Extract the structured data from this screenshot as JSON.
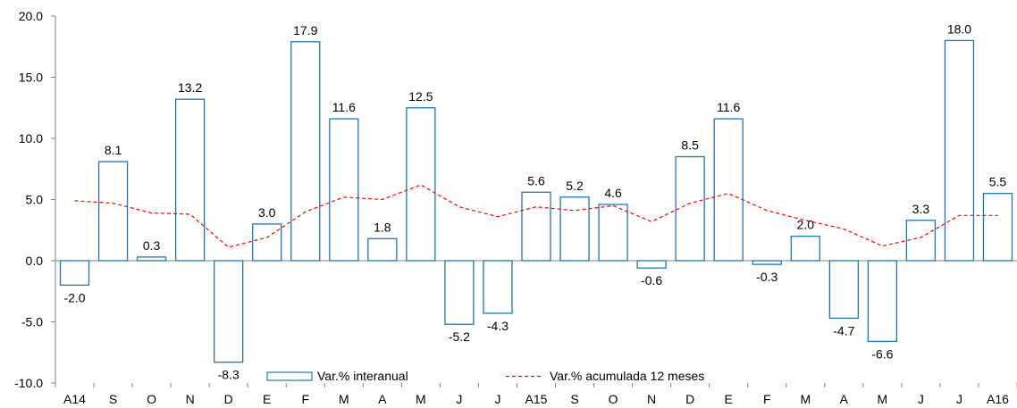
{
  "chart_data": {
    "type": "bar",
    "categories": [
      "A14",
      "S",
      "O",
      "N",
      "D",
      "E",
      "F",
      "M",
      "A",
      "M",
      "J",
      "J",
      "A15",
      "S",
      "O",
      "N",
      "D",
      "E",
      "F",
      "M",
      "A",
      "M",
      "J",
      "J",
      "A16"
    ],
    "series": [
      {
        "name": "Var.% interanual",
        "type": "bar",
        "values": [
          -2.0,
          8.1,
          0.3,
          13.2,
          -8.3,
          3.0,
          17.9,
          11.6,
          1.8,
          12.5,
          -5.2,
          -4.3,
          5.6,
          5.2,
          4.6,
          -0.6,
          8.5,
          11.6,
          -0.3,
          2.0,
          -4.7,
          -6.6,
          3.3,
          18.0,
          5.5
        ],
        "data_labels": [
          "-2.0",
          "8.1",
          "0.3",
          "13.2",
          "-8.3",
          "3.0",
          "17.9",
          "11.6",
          "1.8",
          "12.5",
          "-5.2",
          "-4.3",
          "5.6",
          "5.2",
          "4.6",
          "-0.6",
          "8.5",
          "11.6",
          "-0.3",
          "2.0",
          "-4.7",
          "-6.6",
          "3.3",
          "18.0",
          "5.5"
        ]
      },
      {
        "name": "Var.% acumulada 12 meses",
        "type": "line",
        "style": "dashed",
        "values": [
          4.9,
          4.7,
          3.9,
          3.8,
          1.1,
          1.9,
          4.0,
          5.2,
          5.0,
          6.2,
          4.4,
          3.6,
          4.4,
          4.1,
          4.5,
          3.2,
          4.7,
          5.5,
          4.1,
          3.3,
          2.6,
          1.2,
          1.9,
          3.7,
          3.7
        ]
      }
    ],
    "y_ticks": [
      "20.0",
      "15.0",
      "10.0",
      "5.0",
      "0.0",
      "-5.0",
      "-10.0"
    ],
    "ylim": [
      -10,
      20
    ],
    "grid": false,
    "legend_position": "bottom",
    "colors": {
      "bar_stroke": "#1f77b4",
      "line": "#ff0000",
      "axis": "#808080"
    }
  }
}
